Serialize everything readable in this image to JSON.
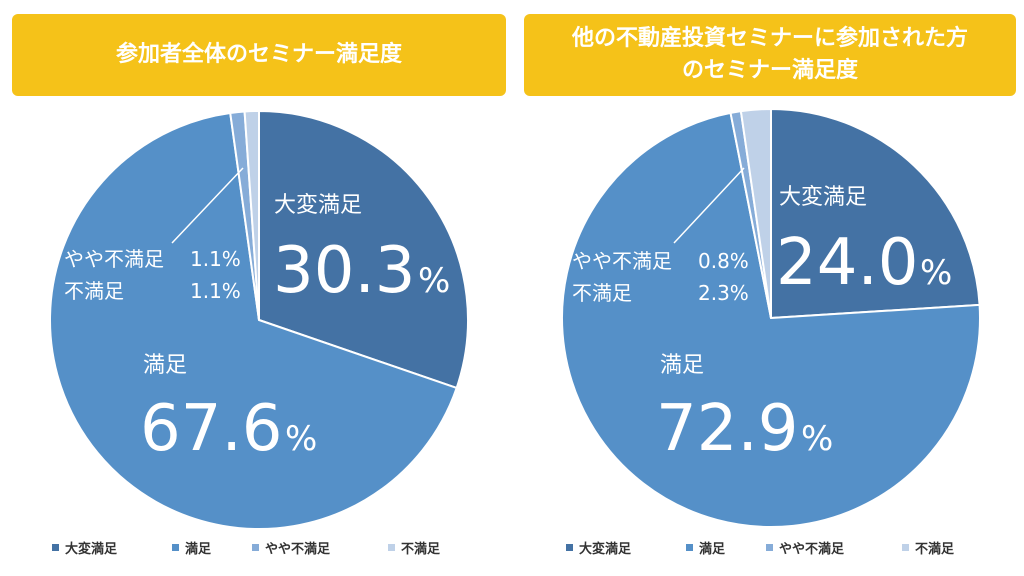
{
  "colors": {
    "title_bg": "#f5c219",
    "very_satisfied": "#4472a4",
    "satisfied": "#5590c8",
    "somewhat_unsatisfied": "#86acd8",
    "unsatisfied": "#bfd1e8"
  },
  "legend": [
    "大変満足",
    "満足",
    "やや不満足",
    "不満足"
  ],
  "chart_data": [
    {
      "type": "pie",
      "title": "参加者全体のセミナー満足度",
      "categories": [
        "大変満足",
        "満足",
        "やや不満足",
        "不満足"
      ],
      "values": [
        30.3,
        67.6,
        1.1,
        1.1
      ],
      "value_labels": [
        "30.3",
        "67.6",
        "1.1%",
        "1.1%"
      ],
      "unit": "%",
      "legend_position": "bottom"
    },
    {
      "type": "pie",
      "title": "他の不動産投資セミナーに参加された方のセミナー満足度",
      "title_lines": [
        "他の不動産投資セミナーに参加された方",
        "のセミナー満足度"
      ],
      "categories": [
        "大変満足",
        "満足",
        "やや不満足",
        "不満足"
      ],
      "values": [
        24.0,
        72.9,
        0.8,
        2.3
      ],
      "value_labels": [
        "24.0",
        "72.9",
        "0.8%",
        "2.3%"
      ],
      "unit": "%",
      "legend_position": "bottom"
    }
  ]
}
